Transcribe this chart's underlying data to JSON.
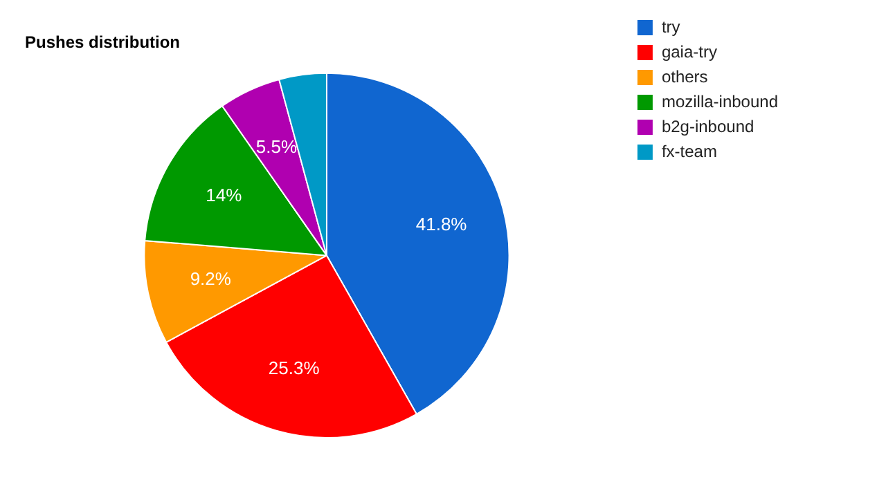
{
  "chart_data": {
    "type": "pie",
    "title": "Pushes distribution",
    "categories": [
      "try",
      "gaia-try",
      "others",
      "mozilla-inbound",
      "b2g-inbound",
      "fx-team"
    ],
    "values": [
      41.8,
      25.3,
      9.2,
      14,
      5.5,
      4.2
    ],
    "value_labels": [
      "41.8%",
      "25.3%",
      "9.2%",
      "14%",
      "5.5%",
      null
    ],
    "colors": [
      "#1066d0",
      "#ff0000",
      "#ff9900",
      "#009900",
      "#b000b0",
      "#0099c6"
    ],
    "legend": "top right"
  }
}
